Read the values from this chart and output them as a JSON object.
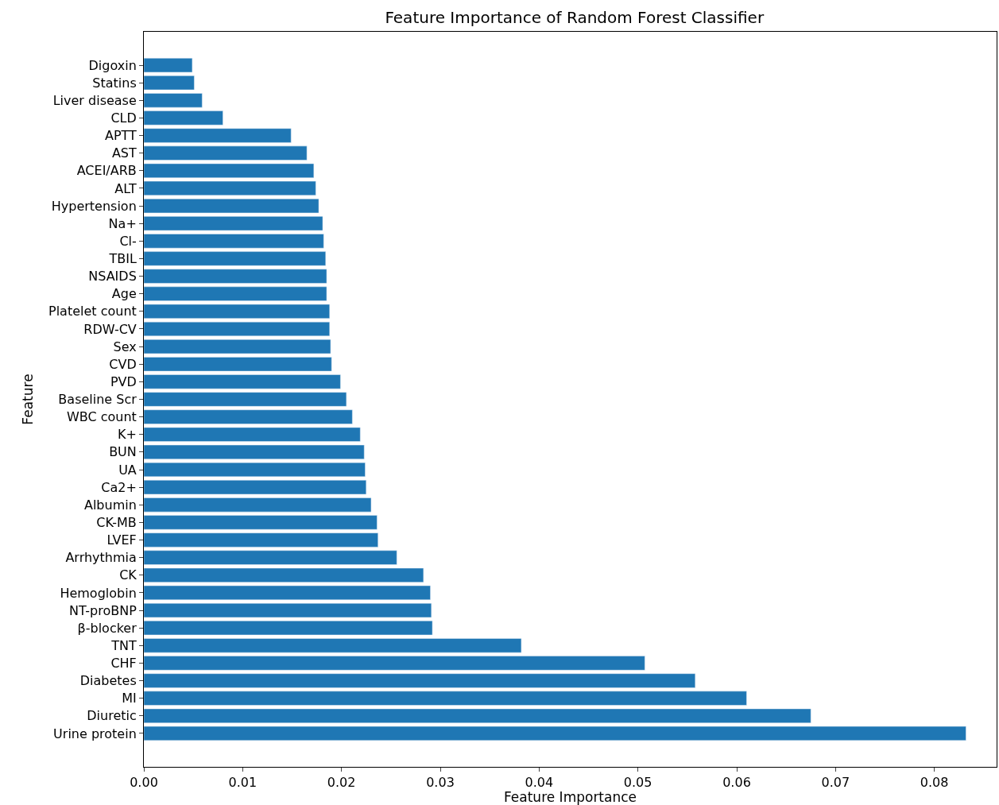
{
  "chart_data": {
    "type": "bar",
    "orientation": "horizontal",
    "title": "Feature Importance of Random Forest Classifier",
    "xlabel": "Feature Importance",
    "ylabel": "Feature",
    "color": "#1f77b4",
    "categories": [
      "Digoxin",
      "Statins",
      "Liver disease",
      "CLD",
      "APTT",
      "AST",
      "ACEI/ARB",
      "ALT",
      "Hypertension",
      "Na+",
      "Cl-",
      "TBIL",
      "NSAIDS",
      "Age",
      "Platelet count",
      "RDW-CV",
      "Sex",
      "CVD",
      "PVD",
      "Baseline Scr",
      "WBC count",
      "K+",
      "BUN",
      "UA",
      "Ca2+",
      "Albumin",
      "CK-MB",
      "LVEF",
      "Arrhythmia",
      "CK",
      "Hemoglobin",
      "NT-proBNP",
      "β-blocker",
      "TNT",
      "CHF",
      "Diabetes",
      "MI",
      "Diuretic",
      "Urine protein"
    ],
    "values": [
      0.0049,
      0.0051,
      0.0059,
      0.008,
      0.0149,
      0.0165,
      0.0172,
      0.0174,
      0.0177,
      0.0181,
      0.0182,
      0.0184,
      0.0185,
      0.0185,
      0.0188,
      0.0188,
      0.0189,
      0.019,
      0.0199,
      0.0205,
      0.0211,
      0.0219,
      0.0223,
      0.0224,
      0.0225,
      0.023,
      0.0236,
      0.0237,
      0.0256,
      0.0283,
      0.029,
      0.0291,
      0.0292,
      0.0382,
      0.0507,
      0.0558,
      0.061,
      0.0675,
      0.0832
    ],
    "xlim": [
      0,
      0.0863
    ],
    "xticks": [
      {
        "value": 0,
        "label": "0.00"
      },
      {
        "value": 0.01,
        "label": "0.01"
      },
      {
        "value": 0.02,
        "label": "0.02"
      },
      {
        "value": 0.03,
        "label": "0.03"
      },
      {
        "value": 0.04,
        "label": "0.04"
      },
      {
        "value": 0.05,
        "label": "0.05"
      },
      {
        "value": 0.06,
        "label": "0.06"
      },
      {
        "value": 0.07,
        "label": "0.07"
      },
      {
        "value": 0.08,
        "label": "0.08"
      }
    ]
  }
}
